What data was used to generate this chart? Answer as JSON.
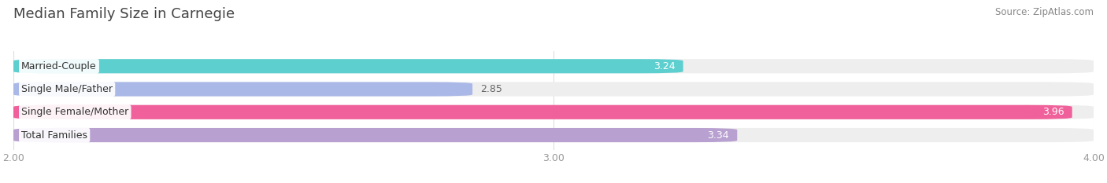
{
  "title": "Median Family Size in Carnegie",
  "source": "Source: ZipAtlas.com",
  "categories": [
    "Married-Couple",
    "Single Male/Father",
    "Single Female/Mother",
    "Total Families"
  ],
  "values": [
    3.24,
    2.85,
    3.96,
    3.34
  ],
  "bar_colors": [
    "#5ecfcf",
    "#aab8e8",
    "#f0609a",
    "#b8a0d0"
  ],
  "bar_bg_colors": [
    "#eeeeee",
    "#eeeeee",
    "#eeeeee",
    "#eeeeee"
  ],
  "value_in_bar": [
    true,
    false,
    true,
    true
  ],
  "xlim": [
    2.0,
    4.0
  ],
  "xticks": [
    2.0,
    3.0,
    4.0
  ],
  "xtick_labels": [
    "2.00",
    "3.00",
    "4.00"
  ],
  "background_color": "#ffffff",
  "bar_height": 0.62,
  "bar_gap": 0.38,
  "title_fontsize": 13,
  "label_fontsize": 9,
  "value_fontsize": 9,
  "tick_fontsize": 9,
  "source_fontsize": 8.5
}
